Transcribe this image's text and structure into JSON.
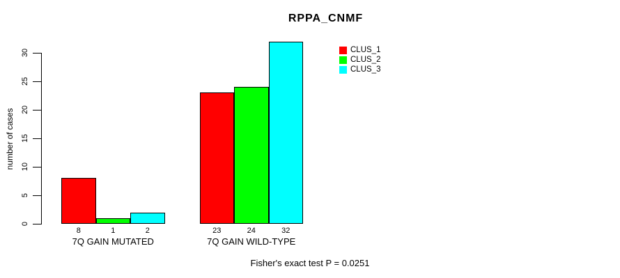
{
  "chart_data": {
    "type": "bar",
    "title": "RPPA_CNMF",
    "xlabel": "",
    "ylabel": "number of cases",
    "categories": [
      "7Q GAIN MUTATED",
      "7Q GAIN WILD-TYPE"
    ],
    "series": [
      {
        "name": "CLUS_1",
        "color": "#ff0000",
        "values": [
          8,
          23
        ]
      },
      {
        "name": "CLUS_2",
        "color": "#00ff00",
        "values": [
          1,
          24
        ]
      },
      {
        "name": "CLUS_3",
        "color": "#00ffff",
        "values": [
          2,
          32
        ]
      }
    ],
    "yticks": [
      0,
      5,
      10,
      15,
      20,
      25,
      30
    ],
    "ylim": [
      0,
      32
    ],
    "grid": false,
    "legend_position": "top-right",
    "bar_value_labels_shown": true,
    "footnote": "Fisher's exact test P = 0.0251",
    "colors": {
      "background": "#ffffff",
      "axis": "#000000",
      "bar_border": "#000000",
      "text": "#000000"
    }
  }
}
